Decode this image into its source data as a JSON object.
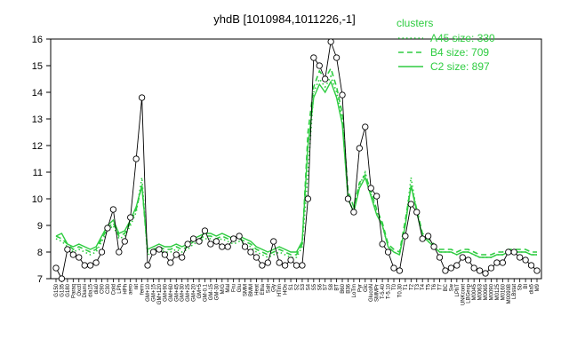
{
  "chart_data": {
    "type": "line",
    "title": "yhdB [1010984,1011226,-1]",
    "xlabel": "",
    "ylabel": "",
    "ylim": [
      7,
      16
    ],
    "yticks": [
      7,
      8,
      9,
      10,
      11,
      12,
      13,
      14,
      15,
      16
    ],
    "grid": false,
    "legend": {
      "title": "clusters",
      "placement": "top-right",
      "entries": [
        {
          "label": "A45 size: 330",
          "style": "dotted"
        },
        {
          "label": "B4 size: 709",
          "style": "dashed"
        },
        {
          "label": "C2 size: 897",
          "style": "solid"
        }
      ]
    },
    "x_tick_labels": [
      "G150",
      "G135",
      "G180",
      "Paraq",
      "Oxctl",
      "Diami",
      "dia15",
      "dia0",
      "C90",
      "C30",
      "Cold",
      "LPh",
      "HPh",
      "aero",
      "nit",
      "ferm",
      "GM+10",
      "GM+15",
      "GM+120",
      "GM+90",
      "GM+60",
      "GM+45",
      "GM+30",
      "GM+25",
      "GM+20",
      "GM+5",
      "GM-0.1",
      "GM-15",
      "GM-30",
      "M/G",
      "Mal",
      "Fru",
      "Glu",
      "SMM",
      "BMM",
      "Heat",
      "Etha",
      "Salt",
      "Gly",
      "HTim",
      "HOs",
      "S1",
      "S2",
      "S3",
      "S4",
      "S5",
      "S6",
      "S7",
      "S8",
      "BT",
      "B60",
      "B36",
      "LoTm",
      "Pyr",
      "Glc",
      "GlucoN",
      "SMMPr",
      "T-5.40",
      "T-5.10",
      "T0",
      "T0.30",
      "T1",
      "T2",
      "T3",
      "T4",
      "T5",
      "T6",
      "T7",
      "BC",
      "Sw",
      "LPhT",
      "UNKcont",
      "LBGexp",
      "M0045",
      "M0063",
      "M0065",
      "M0090",
      "M0125",
      "M0160",
      "M0090B",
      "LBstat",
      "Sb",
      "BI",
      "dia5",
      "M9"
    ],
    "series": [
      {
        "name": "A45 size: 330",
        "style": "dotted",
        "values": [
          8.5,
          8.4,
          8.2,
          8.0,
          8.1,
          8.0,
          7.9,
          8.0,
          8.4,
          8.8,
          9.0,
          8.5,
          8.6,
          9.0,
          9.5,
          10.8,
          7.9,
          8.0,
          8.1,
          8.0,
          8.0,
          8.1,
          8.0,
          8.1,
          8.3,
          8.4,
          8.5,
          8.5,
          8.4,
          8.5,
          8.4,
          8.3,
          8.4,
          8.3,
          8.2,
          8.0,
          7.9,
          7.8,
          7.9,
          8.0,
          7.9,
          7.8,
          7.8,
          8.2,
          11.0,
          14.0,
          14.5,
          14.2,
          14.6,
          14.0,
          13.0,
          10.0,
          9.5,
          10.5,
          11.0,
          10.2,
          9.5,
          9.0,
          8.2,
          8.0,
          7.9,
          9.0,
          10.8,
          9.5,
          8.6,
          8.4,
          8.2,
          8.0,
          8.0,
          8.0,
          7.9,
          8.0,
          8.0,
          7.9,
          7.8,
          7.8,
          7.8,
          7.9,
          7.9,
          8.0,
          8.0,
          8.0,
          8.0,
          7.9,
          7.9
        ]
      },
      {
        "name": "B4 size: 709",
        "style": "dashed",
        "values": [
          8.6,
          8.5,
          8.3,
          8.1,
          8.2,
          8.1,
          8.0,
          8.1,
          8.5,
          8.9,
          9.1,
          8.6,
          8.7,
          9.1,
          9.6,
          10.5,
          8.0,
          8.1,
          8.2,
          8.1,
          8.1,
          8.2,
          8.1,
          8.2,
          8.4,
          8.5,
          8.6,
          8.6,
          8.5,
          8.6,
          8.5,
          8.4,
          8.5,
          8.4,
          8.3,
          8.1,
          8.0,
          7.9,
          8.0,
          8.1,
          8.0,
          7.9,
          7.9,
          8.3,
          12.5,
          14.2,
          14.8,
          14.5,
          14.9,
          14.2,
          13.2,
          10.3,
          9.7,
          10.6,
          10.9,
          10.3,
          9.6,
          9.1,
          8.3,
          8.1,
          8.0,
          9.2,
          10.5,
          9.6,
          8.7,
          8.5,
          8.3,
          8.1,
          8.1,
          8.1,
          8.0,
          8.1,
          8.1,
          8.0,
          7.9,
          7.9,
          7.9,
          8.0,
          8.0,
          8.1,
          8.1,
          8.1,
          8.1,
          8.0,
          8.0
        ]
      },
      {
        "name": "C2 size: 897",
        "style": "solid",
        "values": [
          8.6,
          8.7,
          8.3,
          8.2,
          8.3,
          8.2,
          8.1,
          8.2,
          8.6,
          9.0,
          9.2,
          8.7,
          8.8,
          9.2,
          9.7,
          10.5,
          8.1,
          8.2,
          8.3,
          8.2,
          8.2,
          8.3,
          8.2,
          8.3,
          8.5,
          8.6,
          8.7,
          8.7,
          8.6,
          8.7,
          8.6,
          8.5,
          8.6,
          8.5,
          8.4,
          8.2,
          8.1,
          8.0,
          8.1,
          8.2,
          8.1,
          8.0,
          8.0,
          8.4,
          12.0,
          13.8,
          14.3,
          14.0,
          14.4,
          13.8,
          12.8,
          10.0,
          9.5,
          10.4,
          10.8,
          10.1,
          9.4,
          9.0,
          8.2,
          8.0,
          7.9,
          9.0,
          10.5,
          9.5,
          8.6,
          8.4,
          8.2,
          8.0,
          8.0,
          8.0,
          7.9,
          8.0,
          8.0,
          7.9,
          7.8,
          7.8,
          7.8,
          7.9,
          7.9,
          8.0,
          8.0,
          8.0,
          8.0,
          7.9,
          7.9
        ]
      },
      {
        "name": "",
        "style": "points",
        "values": [
          7.4,
          7.0,
          8.1,
          7.9,
          7.8,
          7.5,
          7.5,
          7.6,
          8.0,
          8.9,
          9.6,
          8.0,
          8.4,
          9.3,
          11.5,
          13.8,
          7.5,
          8.0,
          8.1,
          7.9,
          7.6,
          7.9,
          7.8,
          8.3,
          8.5,
          8.4,
          8.8,
          8.3,
          8.4,
          8.2,
          8.2,
          8.5,
          8.6,
          8.2,
          8.0,
          7.8,
          7.5,
          7.6,
          8.4,
          7.6,
          7.5,
          7.7,
          7.5,
          7.5,
          10.0,
          15.3,
          15.0,
          14.5,
          15.9,
          15.3,
          13.9,
          10.0,
          9.5,
          11.9,
          12.7,
          10.4,
          10.1,
          8.3,
          8.0,
          7.4,
          7.3,
          8.6,
          9.8,
          9.5,
          8.5,
          8.6,
          8.2,
          7.8,
          7.3,
          7.4,
          7.5,
          7.8,
          7.7,
          7.4,
          7.3,
          7.2,
          7.4,
          7.6,
          7.6,
          8.0,
          8.0,
          7.8,
          7.7,
          7.5,
          7.3
        ]
      }
    ]
  }
}
